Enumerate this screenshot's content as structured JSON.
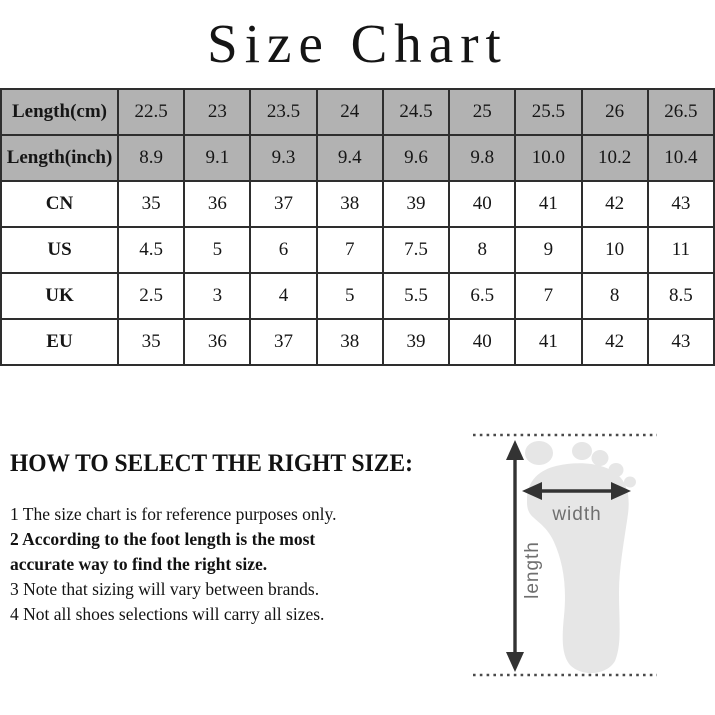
{
  "title": "Size Chart",
  "size_table": {
    "rows": [
      {
        "header": "Length(cm)",
        "shaded": true,
        "values": [
          "22.5",
          "23",
          "23.5",
          "24",
          "24.5",
          "25",
          "25.5",
          "26",
          "26.5"
        ]
      },
      {
        "header": "Length(inch)",
        "shaded": true,
        "values": [
          "8.9",
          "9.1",
          "9.3",
          "9.4",
          "9.6",
          "9.8",
          "10.0",
          "10.2",
          "10.4"
        ]
      },
      {
        "header": "CN",
        "shaded": false,
        "values": [
          "35",
          "36",
          "37",
          "38",
          "39",
          "40",
          "41",
          "42",
          "43"
        ]
      },
      {
        "header": "US",
        "shaded": false,
        "values": [
          "4.5",
          "5",
          "6",
          "7",
          "7.5",
          "8",
          "9",
          "10",
          "11"
        ]
      },
      {
        "header": "UK",
        "shaded": false,
        "values": [
          "2.5",
          "3",
          "4",
          "5",
          "5.5",
          "6.5",
          "7",
          "8",
          "8.5"
        ]
      },
      {
        "header": "EU",
        "shaded": false,
        "values": [
          "35",
          "36",
          "37",
          "38",
          "39",
          "40",
          "41",
          "42",
          "43"
        ]
      }
    ]
  },
  "guide": {
    "heading": "HOW TO SELECT THE RIGHT SIZE:",
    "notes": [
      {
        "number": "1",
        "text": "The size chart is for reference purposes only.",
        "bold": false
      },
      {
        "number": "2",
        "text": "According to the foot length is the most accurate way to find the right size.",
        "bold": true
      },
      {
        "number": "3",
        "text": "Note that sizing will vary between brands.",
        "bold": false
      },
      {
        "number": "4",
        "text": "Not all shoes selections will carry all sizes.",
        "bold": false
      }
    ]
  },
  "diagram": {
    "width_label": "width",
    "length_label": "length"
  },
  "colors": {
    "shaded_row_bg": "#b2b2b2",
    "table_border": "#2e2e2e",
    "arrow": "#333333",
    "dotted_line": "#4a4a4a",
    "footprint": "#e6e6e6",
    "diagram_label": "#6f6f6f"
  }
}
